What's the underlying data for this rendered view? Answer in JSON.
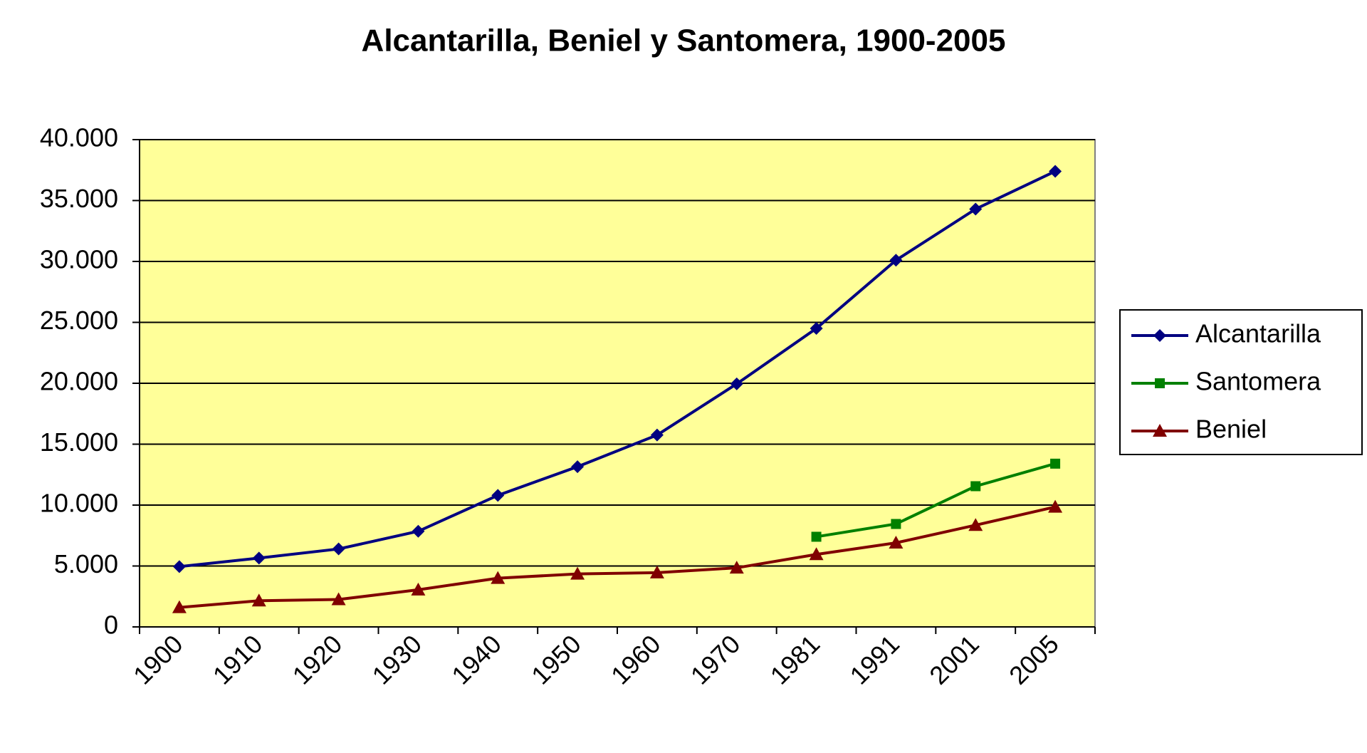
{
  "chart_data": {
    "type": "line",
    "title": "Alcantarilla, Beniel y Santomera, 1900-2005",
    "categories": [
      "1900",
      "1910",
      "1920",
      "1930",
      "1940",
      "1950",
      "1960",
      "1970",
      "1981",
      "1991",
      "2001",
      "2005"
    ],
    "series": [
      {
        "name": "Alcantarilla",
        "color": "#000080",
        "marker": "diamond",
        "values": [
          4950,
          5650,
          6400,
          7850,
          10800,
          13150,
          15750,
          19950,
          24500,
          30100,
          34300,
          37400
        ]
      },
      {
        "name": "Santomera",
        "color": "#008000",
        "marker": "square",
        "values": [
          null,
          null,
          null,
          null,
          null,
          null,
          null,
          null,
          7400,
          8450,
          11550,
          13400
        ]
      },
      {
        "name": "Beniel",
        "color": "#800000",
        "marker": "triangle",
        "values": [
          1600,
          2150,
          2250,
          3050,
          4000,
          4350,
          4450,
          4850,
          5950,
          6900,
          8350,
          9850
        ]
      }
    ],
    "ylim": [
      0,
      40000
    ],
    "yticks": [
      0,
      {
        "value": 5000,
        "label": "5.000"
      },
      {
        "value": 10000,
        "label": "10.000"
      },
      {
        "value": 15000,
        "label": "15.000"
      },
      {
        "value": 20000,
        "label": "20.000"
      },
      {
        "value": 25000,
        "label": "25.000"
      },
      {
        "value": 30000,
        "label": "30.000"
      },
      {
        "value": 35000,
        "label": "35.000"
      },
      {
        "value": 40000,
        "label": "40.000"
      }
    ],
    "grid": true,
    "legend": "right",
    "plot_background": "#ffff99"
  }
}
